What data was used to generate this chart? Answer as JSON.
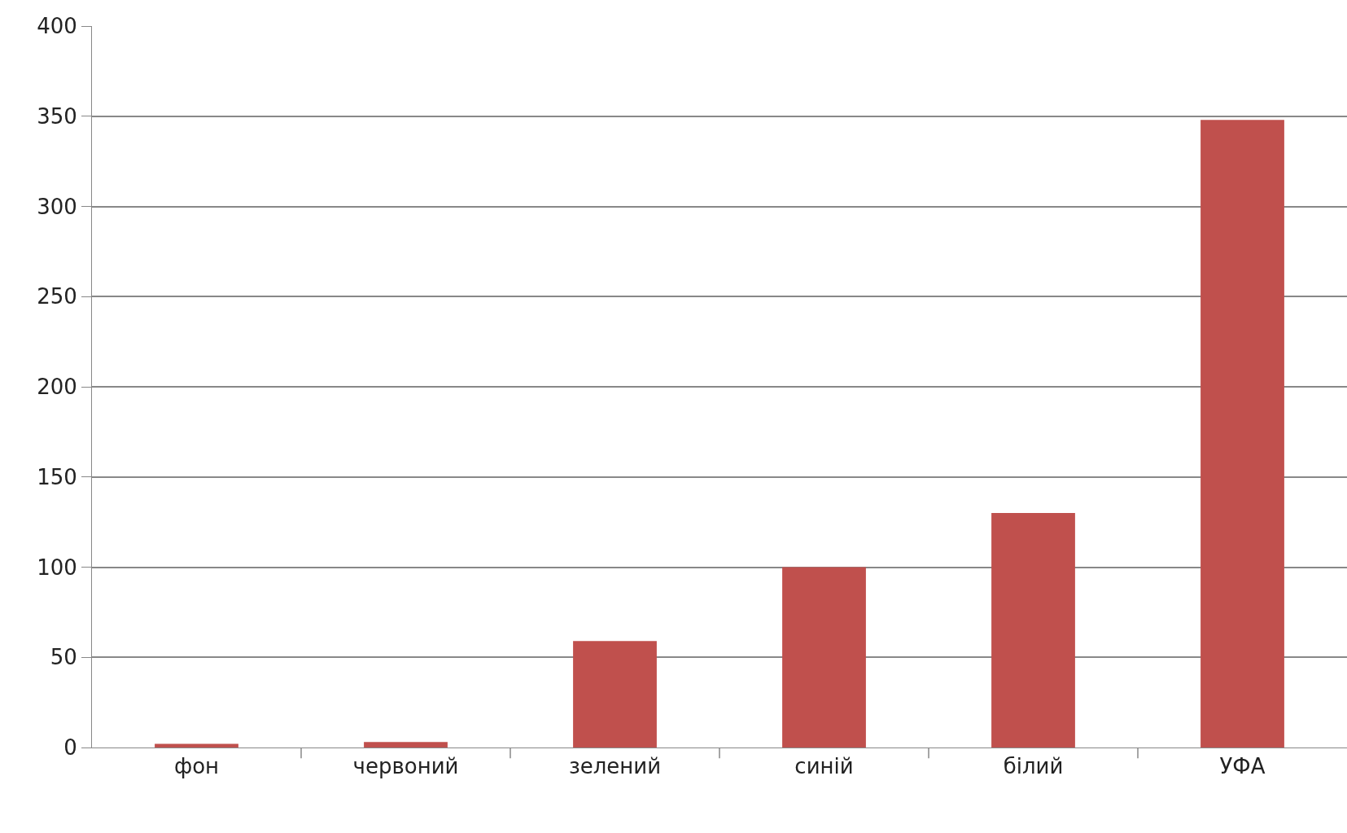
{
  "chart_data": {
    "type": "bar",
    "categories": [
      "фон",
      "червоний",
      "зелений",
      "синій",
      "білий",
      "УФА"
    ],
    "values": [
      2,
      3,
      59,
      100,
      130,
      348
    ],
    "color": "#c0504d",
    "ylim": [
      0,
      400
    ],
    "yticks": [
      0,
      50,
      100,
      150,
      200,
      250,
      300,
      350,
      400
    ],
    "grid": "y",
    "legend": false
  }
}
